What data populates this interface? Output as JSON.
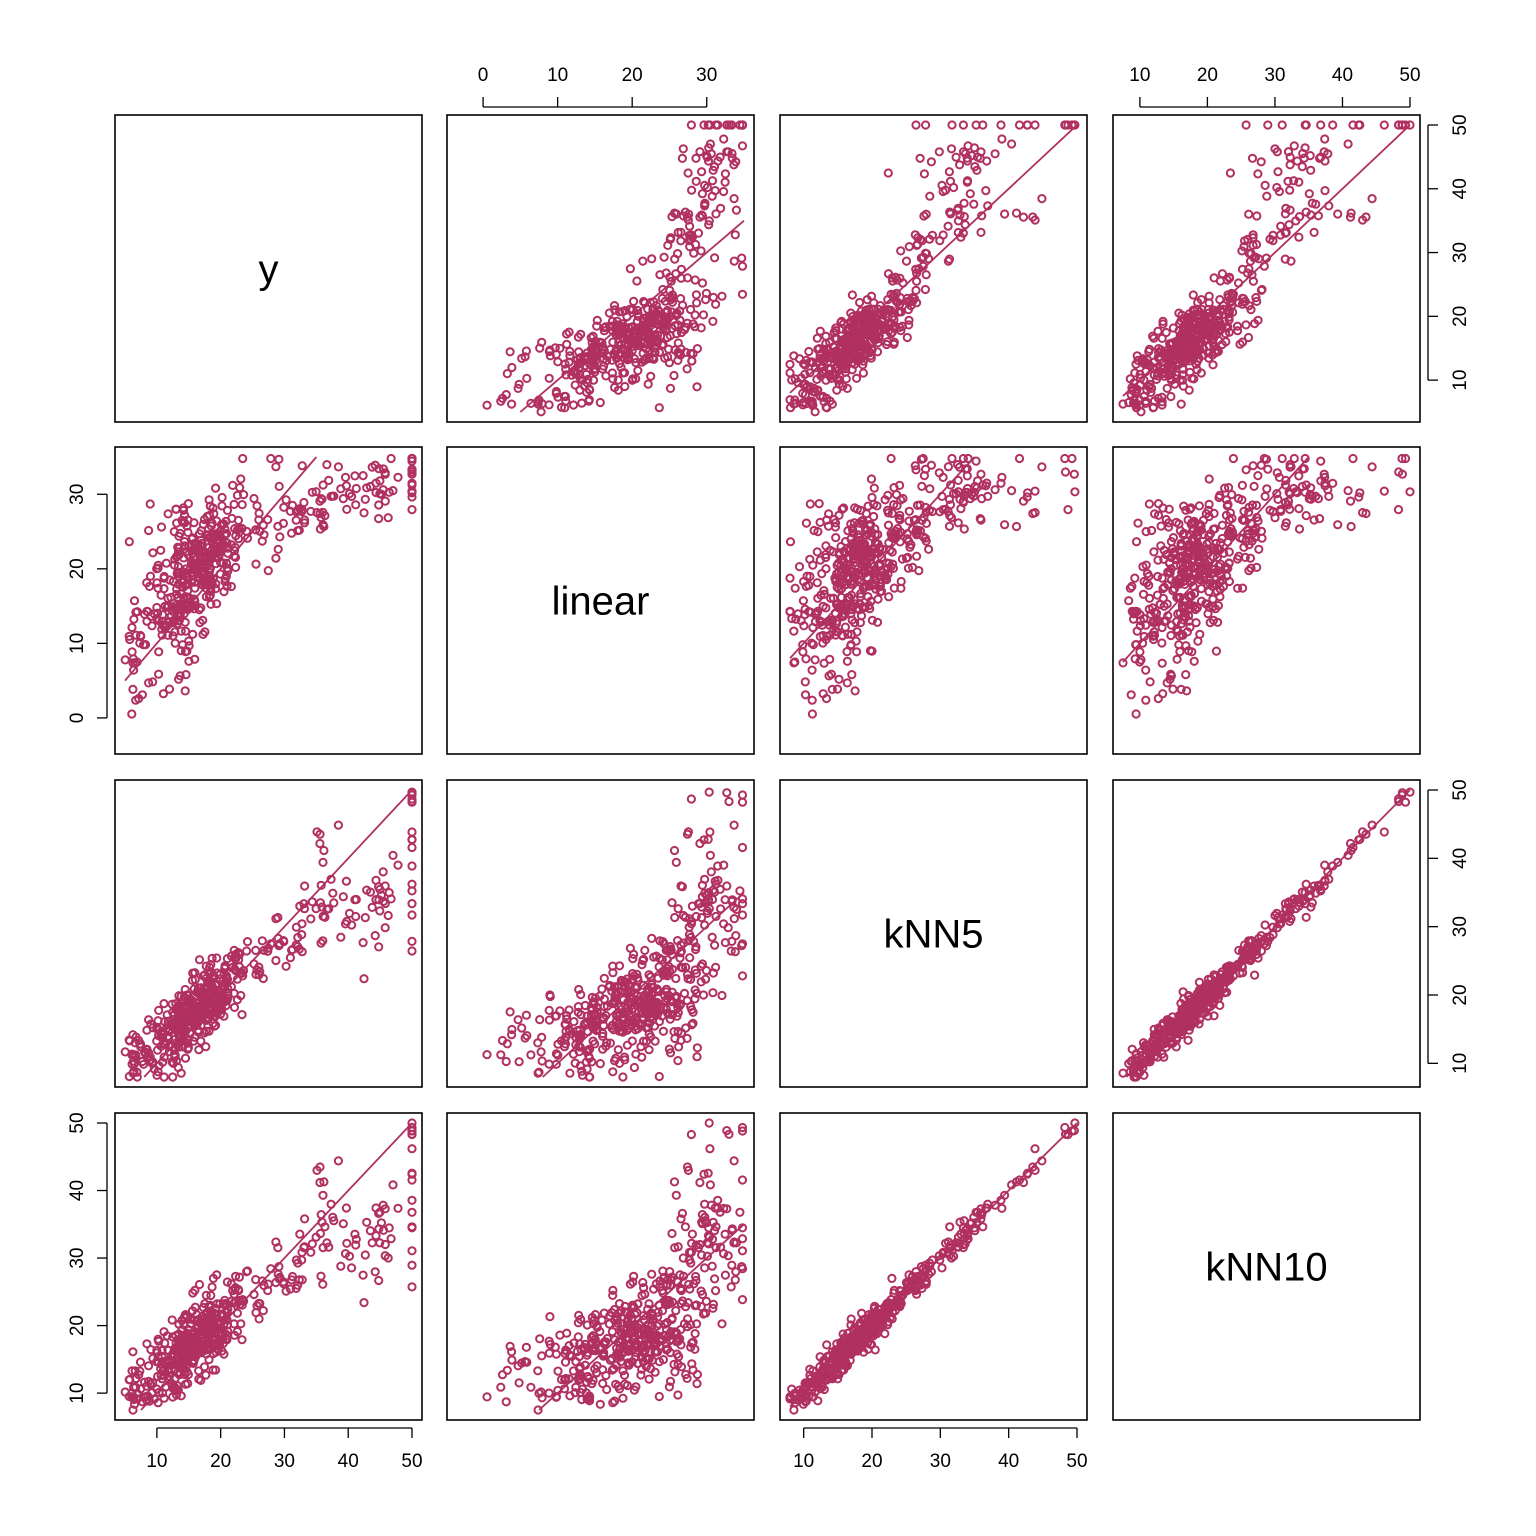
{
  "chart_data": {
    "type": "scatter-matrix",
    "variables": [
      "y",
      "linear",
      "kNN5",
      "kNN10"
    ],
    "colors": {
      "points": "#b03060",
      "reference_line": "#b03060"
    },
    "reference_line": "y = x",
    "ranges": {
      "y": [
        5,
        50
      ],
      "linear": [
        -3.5,
        35
      ],
      "kNN5": [
        8,
        50
      ],
      "kNN10": [
        7.5,
        50
      ]
    },
    "ticks": {
      "y": [
        10,
        20,
        30,
        40,
        50
      ],
      "linear": [
        0,
        10,
        20,
        30
      ],
      "kNN5": [
        10,
        20,
        30,
        40,
        50
      ],
      "kNN10": [
        10,
        20,
        30,
        40,
        50
      ]
    },
    "n_points": 506,
    "grid": false,
    "legend": "none"
  }
}
